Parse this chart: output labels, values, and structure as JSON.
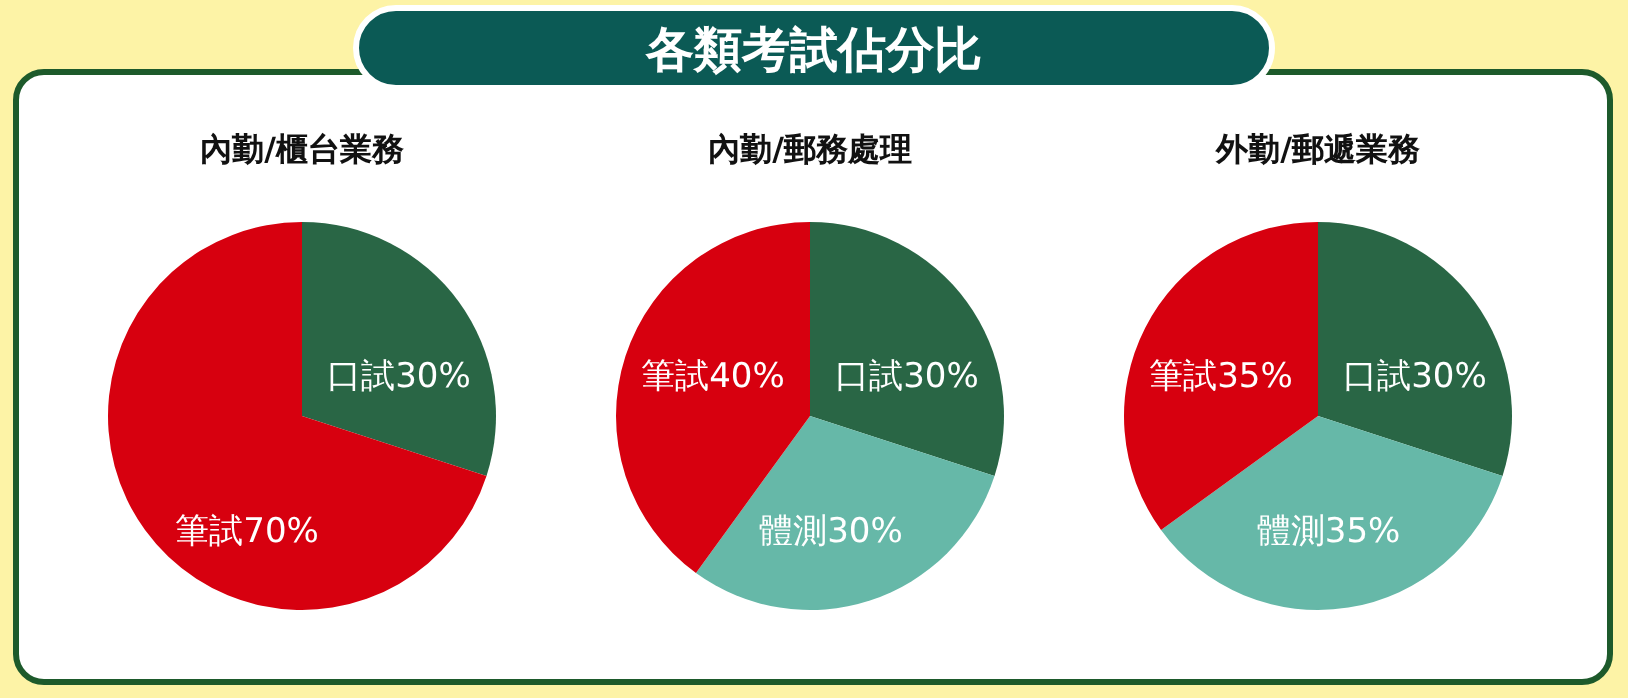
{
  "chart_data": [
    {
      "type": "other",
      "title": "各類考試佔分比"
    },
    {
      "type": "pie",
      "title": "內勤/櫃台業務",
      "categories": [
        "口試",
        "筆試"
      ],
      "values": [
        30,
        70
      ],
      "colors": [
        "#296645",
        "#d7000f"
      ],
      "value_labels": [
        "30%",
        "70%"
      ]
    },
    {
      "type": "pie",
      "title": "內勤/郵務處理",
      "categories": [
        "口試",
        "體測",
        "筆試"
      ],
      "values": [
        30,
        30,
        40
      ],
      "colors": [
        "#296645",
        "#66b8a8",
        "#d7000f"
      ],
      "value_labels": [
        "30%",
        "30%",
        "40%"
      ]
    },
    {
      "type": "pie",
      "title": "外勤/郵遞業務",
      "categories": [
        "口試",
        "體測",
        "筆試"
      ],
      "values": [
        30,
        35,
        35
      ],
      "colors": [
        "#296645",
        "#66b8a8",
        "#d7000f"
      ],
      "value_labels": [
        "30%",
        "35%",
        "35%"
      ]
    }
  ]
}
